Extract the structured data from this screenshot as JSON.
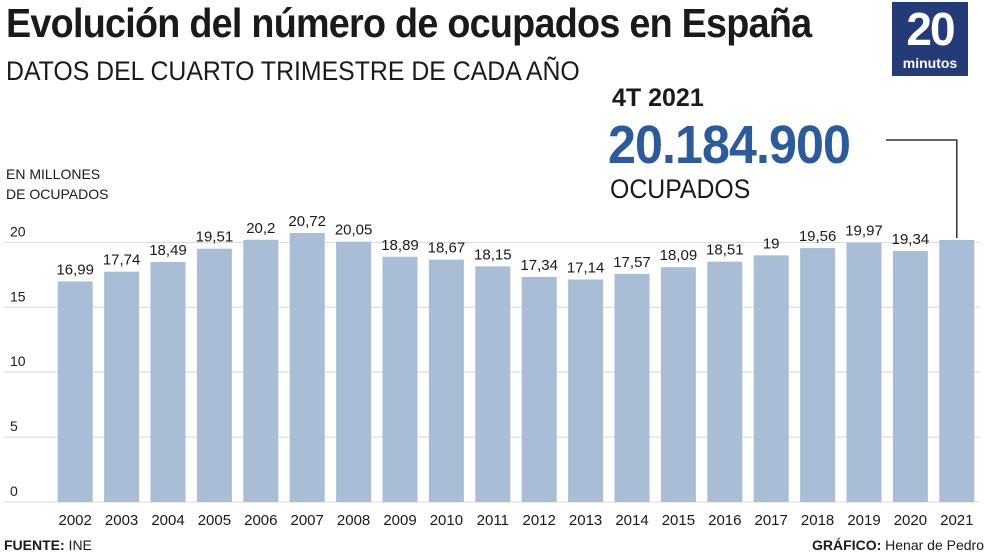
{
  "header": {
    "title": "Evolución del número de ocupados en España",
    "subtitle": "DATOS DEL CUARTO TRIMESTRE DE CADA AÑO"
  },
  "logo": {
    "number": "20",
    "word": "minutos",
    "color": "#243b77"
  },
  "highlight": {
    "period": "4T 2021",
    "value": "20.184.900",
    "unit": "OCUPADOS",
    "color": "#2d5a98"
  },
  "unit_label": {
    "line1": "EN MILLONES",
    "line2": "DE OCUPADOS"
  },
  "footer": {
    "source_label": "FUENTE:",
    "source_value": " INE",
    "credit_label": "GRÁFICO:",
    "credit_value": " Henar de Pedro"
  },
  "chart_data": {
    "type": "bar",
    "categories": [
      "2002",
      "2003",
      "2004",
      "2005",
      "2006",
      "2007",
      "2008",
      "2009",
      "2010",
      "2011",
      "2012",
      "2013",
      "2014",
      "2015",
      "2016",
      "2017",
      "2018",
      "2019",
      "2020",
      "2021"
    ],
    "values": [
      16.99,
      17.74,
      18.49,
      19.51,
      20.2,
      20.72,
      20.05,
      18.89,
      18.67,
      18.15,
      17.34,
      17.14,
      17.57,
      18.09,
      18.51,
      19,
      19.56,
      19.97,
      19.34,
      20.1849
    ],
    "data_labels": [
      "16,99",
      "17,74",
      "18,49",
      "19,51",
      "20,2",
      "20,72",
      "20,05",
      "18,89",
      "18,67",
      "18,15",
      "17,34",
      "17,14",
      "17,57",
      "18,09",
      "18,51",
      "19",
      "19,56",
      "19,97",
      "19,34",
      ""
    ],
    "yticks": [
      0,
      5,
      10,
      15,
      20
    ],
    "ylim": [
      0,
      20.72
    ],
    "grid": true,
    "bar_color": "#aabdd6",
    "grid_color": "#d8d8d8"
  }
}
